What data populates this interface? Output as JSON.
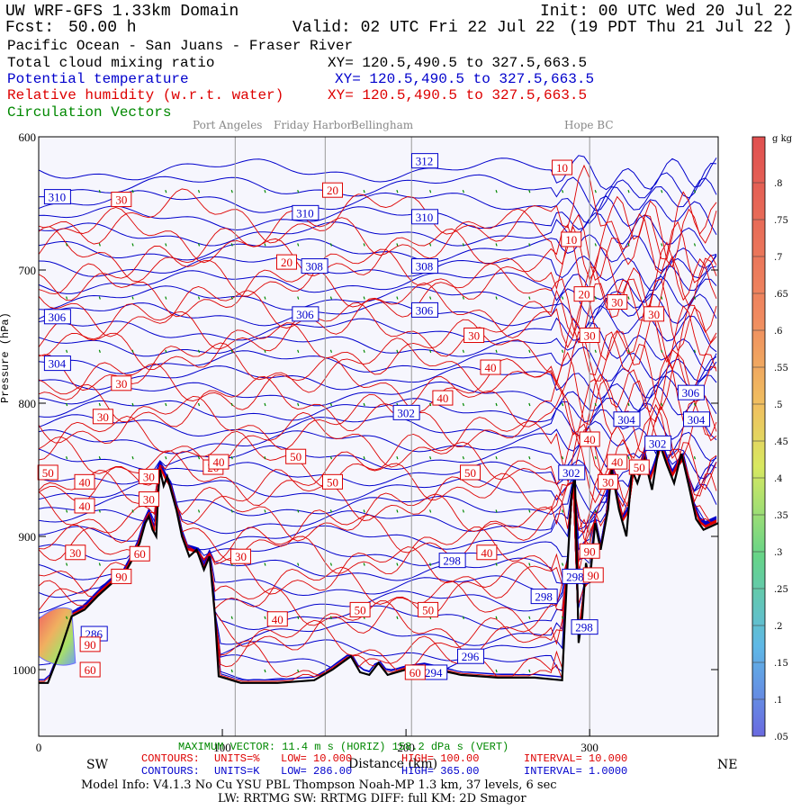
{
  "header": {
    "model": "UW WRF-GFS 1.33km Domain",
    "init": "Init: 00 UTC Wed 20 Jul 22",
    "fcst_label": "Fcst:",
    "fcst_value": "50.00 h",
    "valid": "Valid: 02 UTC Fri 22 Jul 22",
    "local": "(19 PDT Thu 21 Jul 22  )",
    "region": "Pacific Ocean - San Juans - Fraser River",
    "fields": [
      {
        "name": "Total cloud mixing ratio",
        "xy": "XY= 120.5,490.5 to 327.5,663.5",
        "color": "#000000"
      },
      {
        "name": "Potential temperature",
        "xy": "XY= 120.5,490.5 to 327.5,663.5",
        "color": "#0000cc"
      },
      {
        "name": "Relative humidity (w.r.t. water)",
        "xy": "XY= 120.5,490.5 to 327.5,663.5",
        "color": "#dd0000"
      },
      {
        "name": "Circulation Vectors",
        "xy": "",
        "color": "#008800"
      }
    ]
  },
  "chart_data": {
    "type": "cross-section",
    "places": [
      "Port Angeles",
      "Friday Harbor",
      "Bellingham",
      "Hope BC"
    ],
    "place_distances": [
      107,
      156,
      203,
      300
    ],
    "x_ticks": [
      0,
      100,
      200,
      300
    ],
    "xlim": [
      0,
      370
    ],
    "ylim": [
      600,
      1050
    ],
    "y_ticks": [
      600,
      700,
      800,
      900,
      1000
    ],
    "y_tick_labels": [
      "600",
      "700",
      "800",
      "900",
      "1000"
    ],
    "ylabel": "Pressure (hPa)",
    "xlabel": "Distance (km)",
    "x_end_labels": {
      "left": "SW",
      "right": "NE"
    },
    "theta_labels": [
      {
        "text": "312",
        "x": 210,
        "p": 618
      },
      {
        "text": "310",
        "x": 10,
        "p": 645
      },
      {
        "text": "310",
        "x": 145,
        "p": 657
      },
      {
        "text": "310",
        "x": 210,
        "p": 660
      },
      {
        "text": "308",
        "x": 150,
        "p": 697
      },
      {
        "text": "308",
        "x": 210,
        "p": 697
      },
      {
        "text": "306",
        "x": 10,
        "p": 735
      },
      {
        "text": "306",
        "x": 145,
        "p": 733
      },
      {
        "text": "306",
        "x": 210,
        "p": 730
      },
      {
        "text": "304",
        "x": 10,
        "p": 770
      },
      {
        "text": "302",
        "x": 200,
        "p": 807
      },
      {
        "text": "306",
        "x": 355,
        "p": 792
      },
      {
        "text": "304",
        "x": 320,
        "p": 812
      },
      {
        "text": "304",
        "x": 358,
        "p": 812
      },
      {
        "text": "302",
        "x": 337,
        "p": 830
      },
      {
        "text": "302",
        "x": 290,
        "p": 852
      },
      {
        "text": "298",
        "x": 225,
        "p": 918
      },
      {
        "text": "298",
        "x": 292,
        "p": 930
      },
      {
        "text": "298",
        "x": 275,
        "p": 945
      },
      {
        "text": "298",
        "x": 297,
        "p": 968
      },
      {
        "text": "296",
        "x": 235,
        "p": 990
      },
      {
        "text": "294",
        "x": 215,
        "p": 1002
      },
      {
        "text": "286",
        "x": 30,
        "p": 973
      }
    ],
    "rh_labels": [
      {
        "text": "10",
        "x": 285,
        "p": 623
      },
      {
        "text": "20",
        "x": 160,
        "p": 640
      },
      {
        "text": "30",
        "x": 45,
        "p": 647
      },
      {
        "text": "10",
        "x": 290,
        "p": 677
      },
      {
        "text": "20",
        "x": 135,
        "p": 694
      },
      {
        "text": "20",
        "x": 297,
        "p": 718
      },
      {
        "text": "30",
        "x": 315,
        "p": 724
      },
      {
        "text": "30",
        "x": 335,
        "p": 733
      },
      {
        "text": "30",
        "x": 237,
        "p": 749
      },
      {
        "text": "30",
        "x": 300,
        "p": 749
      },
      {
        "text": "40",
        "x": 246,
        "p": 773
      },
      {
        "text": "30",
        "x": 45,
        "p": 785
      },
      {
        "text": "40",
        "x": 220,
        "p": 796
      },
      {
        "text": "30",
        "x": 35,
        "p": 810
      },
      {
        "text": "40",
        "x": 300,
        "p": 827
      },
      {
        "text": "50",
        "x": 140,
        "p": 840
      },
      {
        "text": "20",
        "x": 95,
        "p": 848
      },
      {
        "text": "40",
        "x": 98,
        "p": 844
      },
      {
        "text": "50",
        "x": 5,
        "p": 852
      },
      {
        "text": "50",
        "x": 235,
        "p": 852
      },
      {
        "text": "40",
        "x": 315,
        "p": 844
      },
      {
        "text": "50",
        "x": 327,
        "p": 848
      },
      {
        "text": "30",
        "x": 60,
        "p": 855
      },
      {
        "text": "40",
        "x": 25,
        "p": 859
      },
      {
        "text": "50",
        "x": 160,
        "p": 859
      },
      {
        "text": "30",
        "x": 310,
        "p": 859
      },
      {
        "text": "30",
        "x": 60,
        "p": 872
      },
      {
        "text": "40",
        "x": 25,
        "p": 877
      },
      {
        "text": "60",
        "x": 55,
        "p": 913
      },
      {
        "text": "30",
        "x": 20,
        "p": 912
      },
      {
        "text": "30",
        "x": 110,
        "p": 915
      },
      {
        "text": "40",
        "x": 244,
        "p": 912
      },
      {
        "text": "90",
        "x": 300,
        "p": 911
      },
      {
        "text": "90",
        "x": 302,
        "p": 929
      },
      {
        "text": "90",
        "x": 45,
        "p": 930
      },
      {
        "text": "40",
        "x": 130,
        "p": 962
      },
      {
        "text": "50",
        "x": 175,
        "p": 955
      },
      {
        "text": "50",
        "x": 212,
        "p": 955
      },
      {
        "text": "90",
        "x": 28,
        "p": 981
      },
      {
        "text": "60",
        "x": 28,
        "p": 1000
      },
      {
        "text": "60",
        "x": 205,
        "p": 1002
      }
    ],
    "terrain": [
      [
        0,
        1010
      ],
      [
        5,
        1010
      ],
      [
        12,
        985
      ],
      [
        18,
        960
      ],
      [
        25,
        955
      ],
      [
        32,
        945
      ],
      [
        40,
        935
      ],
      [
        45,
        932
      ],
      [
        50,
        920
      ],
      [
        55,
        905
      ],
      [
        58,
        890
      ],
      [
        60,
        885
      ],
      [
        62,
        895
      ],
      [
        64,
        900
      ],
      [
        65,
        870
      ],
      [
        66,
        850
      ],
      [
        68,
        862
      ],
      [
        70,
        855
      ],
      [
        75,
        880
      ],
      [
        78,
        900
      ],
      [
        82,
        915
      ],
      [
        86,
        910
      ],
      [
        90,
        925
      ],
      [
        93,
        915
      ],
      [
        96,
        960
      ],
      [
        98,
        1005
      ],
      [
        110,
        1010
      ],
      [
        130,
        1010
      ],
      [
        150,
        1008
      ],
      [
        160,
        1000
      ],
      [
        170,
        990
      ],
      [
        175,
        1002
      ],
      [
        180,
        1004
      ],
      [
        185,
        995
      ],
      [
        190,
        1004
      ],
      [
        200,
        1000
      ],
      [
        210,
        998
      ],
      [
        230,
        1004
      ],
      [
        250,
        1006
      ],
      [
        270,
        1006
      ],
      [
        285,
        1008
      ],
      [
        288,
        920
      ],
      [
        290,
        870
      ],
      [
        292,
        855
      ],
      [
        294,
        980
      ],
      [
        296,
        960
      ],
      [
        298,
        920
      ],
      [
        300,
        935
      ],
      [
        303,
        890
      ],
      [
        306,
        910
      ],
      [
        310,
        880
      ],
      [
        312,
        850
      ],
      [
        316,
        880
      ],
      [
        320,
        900
      ],
      [
        323,
        850
      ],
      [
        326,
        860
      ],
      [
        330,
        842
      ],
      [
        334,
        865
      ],
      [
        338,
        830
      ],
      [
        342,
        846
      ],
      [
        346,
        860
      ],
      [
        350,
        838
      ],
      [
        354,
        862
      ],
      [
        358,
        887
      ],
      [
        362,
        895
      ],
      [
        370,
        890
      ]
    ],
    "rh_scale": {
      "title": "g kg",
      "ticks": [
        ".8",
        ".75",
        ".7",
        ".65",
        ".6",
        ".55",
        ".5",
        ".45",
        ".4",
        ".35",
        ".3",
        ".25",
        ".2",
        ".15",
        ".1",
        ".05"
      ]
    },
    "vector_info": "MAXIMUM VECTOR:  11.4 m s   (HORIZ)      158.2 dPa s   (VERT)",
    "red_contours": {
      "label": "CONTOURS:",
      "units": "UNITS=%",
      "low": "LOW=  10.000",
      "high": "HIGH=  100.00",
      "interval": "INTERVAL=   10.000"
    },
    "blue_contours": {
      "label": "CONTOURS:",
      "units": "UNITS=K",
      "low": "LOW=  286.00",
      "high": "HIGH=  365.00",
      "interval": "INTERVAL=   1.0000"
    }
  },
  "footer": {
    "model_info": "Model Info: V4.1.3    No Cu    YSU PBL  Thompson    Noah-MP   1.3 km,   37 levels,    6 sec",
    "model_info2": "LW: RRTMG SW: RRTMG    DIFF: full    KM: 2D Smagor"
  },
  "colors": {
    "theta": "#0000cc",
    "rh": "#dd0000",
    "vector": "#008800",
    "terrain": "#000000"
  }
}
